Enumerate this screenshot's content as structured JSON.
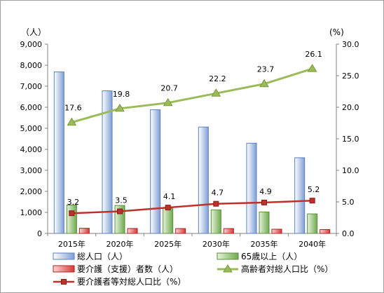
{
  "chart_data": {
    "type": "bar",
    "categories": [
      "2015年",
      "2020年",
      "2025年",
      "2030年",
      "2035年",
      "2040年"
    ],
    "y_left": {
      "unit": "（人）",
      "ticks": [
        "0",
        "1,000",
        "2,000",
        "3,000",
        "4,000",
        "5,000",
        "6,000",
        "7,000",
        "8,000",
        "9,000"
      ],
      "range": [
        0,
        9000
      ]
    },
    "y_right": {
      "unit": "(%)",
      "ticks": [
        "0.0",
        "5.0",
        "10.0",
        "15.0",
        "20.0",
        "25.0",
        "30.0"
      ],
      "range": [
        0,
        30
      ]
    },
    "grid": false,
    "legend_position": "bottom",
    "series": [
      {
        "name": "総人口（人）",
        "type": "bar",
        "axis": "left",
        "color": "#8eaadb",
        "values": [
          7680,
          6780,
          5880,
          5060,
          4290,
          3600
        ]
      },
      {
        "name": "65歳以上（人）",
        "type": "bar",
        "axis": "left",
        "color": "#8fbd72",
        "values": [
          1350,
          1330,
          1200,
          1120,
          1020,
          930
        ]
      },
      {
        "name": "要介護（支援）者数（人）",
        "type": "bar",
        "axis": "left",
        "color": "#e05050",
        "values": [
          245,
          235,
          230,
          230,
          200,
          185
        ]
      },
      {
        "name": "高齢者対総人口比（%）",
        "type": "line",
        "axis": "right",
        "color": "#9bbb59",
        "marker": "triangle",
        "values": [
          17.6,
          19.8,
          20.7,
          22.2,
          23.7,
          26.1
        ],
        "labels": [
          "17.6",
          "19.8",
          "20.7",
          "22.2",
          "23.7",
          "26.1"
        ]
      },
      {
        "name": "要介護者等対総人口比（%）",
        "type": "line",
        "axis": "right",
        "color": "#c0302a",
        "marker": "square",
        "values": [
          3.2,
          3.5,
          4.1,
          4.7,
          4.9,
          5.2
        ],
        "labels": [
          "3.2",
          "3.5",
          "4.1",
          "4.7",
          "4.9",
          "5.2"
        ]
      }
    ]
  }
}
